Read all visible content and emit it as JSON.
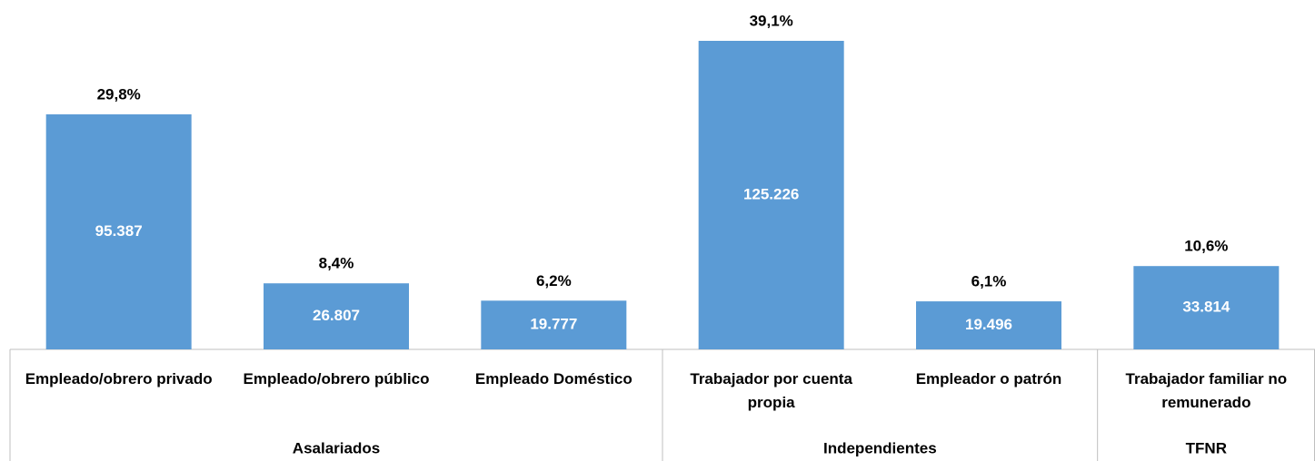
{
  "chart_data": {
    "type": "bar",
    "categories": [
      "Empleado/obrero privado",
      "Empleado/obrero público",
      "Empleado Doméstico",
      "Trabajador por cuenta propia",
      "Empleador o patrón",
      "Trabajador familiar no remunerado"
    ],
    "values": [
      95387,
      26807,
      19777,
      125226,
      19496,
      33814
    ],
    "value_labels": [
      "95.387",
      "26.807",
      "19.777",
      "125.226",
      "19.496",
      "33.814"
    ],
    "percentages": [
      29.8,
      8.4,
      6.2,
      39.1,
      6.1,
      10.6
    ],
    "percentage_labels": [
      "29,8%",
      "8,4%",
      "6,2%",
      "39,1%",
      "6,1%",
      "10,6%"
    ],
    "groups": [
      {
        "name": "Asalariados",
        "size": 3
      },
      {
        "name": "Independientes",
        "size": 2
      },
      {
        "name": "TFNR",
        "size": 1
      }
    ],
    "color": "#5b9bd5"
  }
}
